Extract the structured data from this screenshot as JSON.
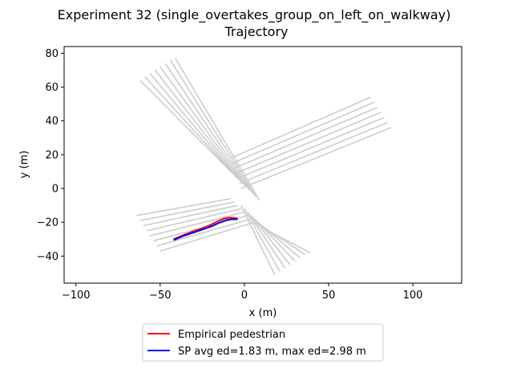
{
  "chart_data": {
    "type": "line",
    "title_line1": "Experiment 32 (single_overtakes_group_on_left_on_walkway)",
    "title_line2": "Trajectory",
    "xlabel": "x (m)",
    "ylabel": "y (m)",
    "xlim": [
      -107,
      129
    ],
    "ylim": [
      -56,
      84
    ],
    "xticks": [
      -100,
      -50,
      0,
      50,
      100
    ],
    "yticks": [
      -40,
      -20,
      0,
      20,
      40,
      60,
      80
    ],
    "grid": false,
    "legend_position": "below plot",
    "series": [
      {
        "name": "Empirical pedestrian",
        "color": "#ff0000",
        "x": [
          -42,
          -36,
          -30,
          -24,
          -19,
          -15,
          -12,
          -9,
          -6,
          -4
        ],
        "y": [
          -30,
          -27.5,
          -25.2,
          -23.2,
          -21,
          -19,
          -17.8,
          -17.2,
          -17.4,
          -17.8
        ]
      },
      {
        "name": "SP avg ed=1.83 m, max ed=2.98 m",
        "color": "#0000ff",
        "x": [
          -42,
          -36,
          -30,
          -24,
          -19,
          -15,
          -11,
          -8,
          -5,
          -4
        ],
        "y": [
          -30.5,
          -28,
          -26,
          -24,
          -22.2,
          -20.3,
          -18.8,
          -18.2,
          -18.2,
          -18.2
        ]
      }
    ],
    "background_network": {
      "color": "#cccccc",
      "note_free": true,
      "lanes": [
        [
          [
            -62,
            64
          ],
          [
            -5,
            7
          ]
        ],
        [
          [
            -59,
            66
          ],
          [
            -3,
            5
          ]
        ],
        [
          [
            -56,
            68
          ],
          [
            -1,
            3
          ]
        ],
        [
          [
            -53,
            70
          ],
          [
            1,
            1
          ]
        ],
        [
          [
            -50,
            72
          ],
          [
            3,
            -1
          ]
        ],
        [
          [
            -47,
            74
          ],
          [
            5,
            -3
          ]
        ],
        [
          [
            -44,
            76
          ],
          [
            7,
            -5
          ]
        ],
        [
          [
            -41,
            77
          ],
          [
            9,
            -7
          ]
        ],
        [
          [
            75,
            54
          ],
          [
            -8,
            18
          ]
        ],
        [
          [
            77,
            51
          ],
          [
            -7,
            15
          ]
        ],
        [
          [
            79,
            48
          ],
          [
            -6,
            12
          ]
        ],
        [
          [
            81,
            45
          ],
          [
            -5,
            9
          ]
        ],
        [
          [
            83,
            42
          ],
          [
            -4,
            6
          ]
        ],
        [
          [
            85,
            39
          ],
          [
            -3,
            3
          ]
        ],
        [
          [
            87,
            36
          ],
          [
            -2,
            0
          ]
        ],
        [
          [
            -64,
            -16
          ],
          [
            -8,
            -6
          ]
        ],
        [
          [
            -62,
            -19
          ],
          [
            -6,
            -8
          ]
        ],
        [
          [
            -60,
            -22
          ],
          [
            -4,
            -10
          ]
        ],
        [
          [
            -58,
            -25
          ],
          [
            -2,
            -12
          ]
        ],
        [
          [
            -56,
            -28
          ],
          [
            0,
            -14
          ]
        ],
        [
          [
            -54,
            -31
          ],
          [
            2,
            -16
          ]
        ],
        [
          [
            -52,
            -34
          ],
          [
            4,
            -18
          ]
        ],
        [
          [
            -50,
            -37
          ],
          [
            6,
            -20
          ]
        ],
        [
          [
            18,
            -51
          ],
          [
            -2,
            -10
          ]
        ],
        [
          [
            21,
            -49
          ],
          [
            0,
            -12
          ]
        ],
        [
          [
            24,
            -47
          ],
          [
            2,
            -14
          ]
        ],
        [
          [
            27,
            -45
          ],
          [
            4,
            -16
          ]
        ],
        [
          [
            30,
            -43
          ],
          [
            6,
            -18
          ]
        ],
        [
          [
            33,
            -41
          ],
          [
            8,
            -20
          ]
        ],
        [
          [
            36,
            -39
          ],
          [
            10,
            -22
          ]
        ],
        [
          [
            39,
            -38
          ],
          [
            12,
            -24
          ]
        ]
      ]
    }
  }
}
